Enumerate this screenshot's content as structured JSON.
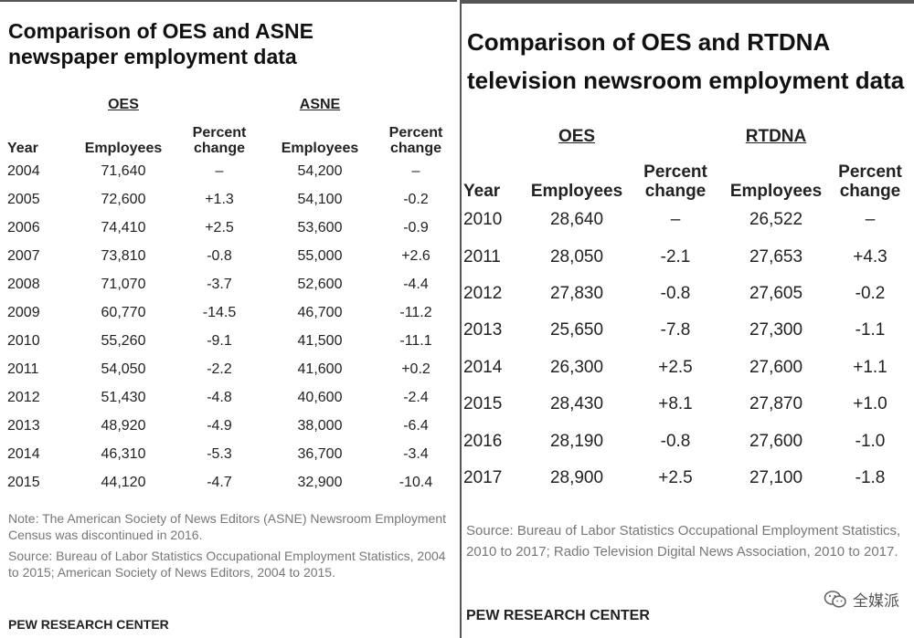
{
  "left": {
    "title_line1": "Comparison of OES and ASNE",
    "title_line2": "newspaper employment data",
    "group1": "OES",
    "group2": "ASNE",
    "col_year": "Year",
    "col_employees": "Employees",
    "col_pct_line1": "Percent",
    "col_pct_line2": "change",
    "rows": [
      {
        "year": "2004",
        "oes": "71,640",
        "oes_pct": "–",
        "asne": "54,200",
        "asne_pct": "–"
      },
      {
        "year": "2005",
        "oes": "72,600",
        "oes_pct": "+1.3",
        "asne": "54,100",
        "asne_pct": "-0.2"
      },
      {
        "year": "2006",
        "oes": "74,410",
        "oes_pct": "+2.5",
        "asne": "53,600",
        "asne_pct": "-0.9"
      },
      {
        "year": "2007",
        "oes": "73,810",
        "oes_pct": "-0.8",
        "asne": "55,000",
        "asne_pct": "+2.6"
      },
      {
        "year": "2008",
        "oes": "71,070",
        "oes_pct": "-3.7",
        "asne": "52,600",
        "asne_pct": "-4.4"
      },
      {
        "year": "2009",
        "oes": "60,770",
        "oes_pct": "-14.5",
        "asne": "46,700",
        "asne_pct": "-11.2"
      },
      {
        "year": "2010",
        "oes": "55,260",
        "oes_pct": "-9.1",
        "asne": "41,500",
        "asne_pct": "-11.1"
      },
      {
        "year": "2011",
        "oes": "54,050",
        "oes_pct": "-2.2",
        "asne": "41,600",
        "asne_pct": "+0.2"
      },
      {
        "year": "2012",
        "oes": "51,430",
        "oes_pct": "-4.8",
        "asne": "40,600",
        "asne_pct": "-2.4"
      },
      {
        "year": "2013",
        "oes": "48,920",
        "oes_pct": "-4.9",
        "asne": "38,000",
        "asne_pct": "-6.4"
      },
      {
        "year": "2014",
        "oes": "46,310",
        "oes_pct": "-5.3",
        "asne": "36,700",
        "asne_pct": "-3.4"
      },
      {
        "year": "2015",
        "oes": "44,120",
        "oes_pct": "-4.7",
        "asne": "32,900",
        "asne_pct": "-10.4"
      }
    ],
    "note": "Note: The American Society of News Editors (ASNE) Newsroom Employment Census was discontinued in 2016.",
    "source": "Source: Bureau of Labor Statistics Occupational Employment Statistics, 2004 to 2015; American Society of News Editors, 2004 to 2015.",
    "brand": "PEW RESEARCH CENTER"
  },
  "right": {
    "title_line1": "Comparison of OES and RTDNA",
    "title_line2": "television newsroom employment data",
    "group1": "OES",
    "group2": "RTDNA",
    "col_year": "Year",
    "col_employees": "Employees",
    "col_pct_line1": "Percent",
    "col_pct_line2": "change",
    "rows": [
      {
        "year": "2010",
        "oes": "28,640",
        "oes_pct": "–",
        "rtdna": "26,522",
        "rtdna_pct": "–"
      },
      {
        "year": "2011",
        "oes": "28,050",
        "oes_pct": "-2.1",
        "rtdna": "27,653",
        "rtdna_pct": "+4.3"
      },
      {
        "year": "2012",
        "oes": "27,830",
        "oes_pct": "-0.8",
        "rtdna": "27,605",
        "rtdna_pct": "-0.2"
      },
      {
        "year": "2013",
        "oes": "25,650",
        "oes_pct": "-7.8",
        "rtdna": "27,300",
        "rtdna_pct": "-1.1"
      },
      {
        "year": "2014",
        "oes": "26,300",
        "oes_pct": "+2.5",
        "rtdna": "27,600",
        "rtdna_pct": "+1.1"
      },
      {
        "year": "2015",
        "oes": "28,430",
        "oes_pct": "+8.1",
        "rtdna": "27,870",
        "rtdna_pct": "+1.0"
      },
      {
        "year": "2016",
        "oes": "28,190",
        "oes_pct": "-0.8",
        "rtdna": "27,600",
        "rtdna_pct": "-1.0"
      },
      {
        "year": "2017",
        "oes": "28,900",
        "oes_pct": "+2.5",
        "rtdna": "27,100",
        "rtdna_pct": "-1.8"
      }
    ],
    "source": "Source: Bureau of Labor Statistics Occupational Employment Statistics, 2010 to 2017; Radio Television Digital News Association, 2010 to 2017.",
    "brand": "PEW RESEARCH CENTER"
  },
  "watermark": {
    "icon": "wechat-icon",
    "text": "全媒派"
  }
}
